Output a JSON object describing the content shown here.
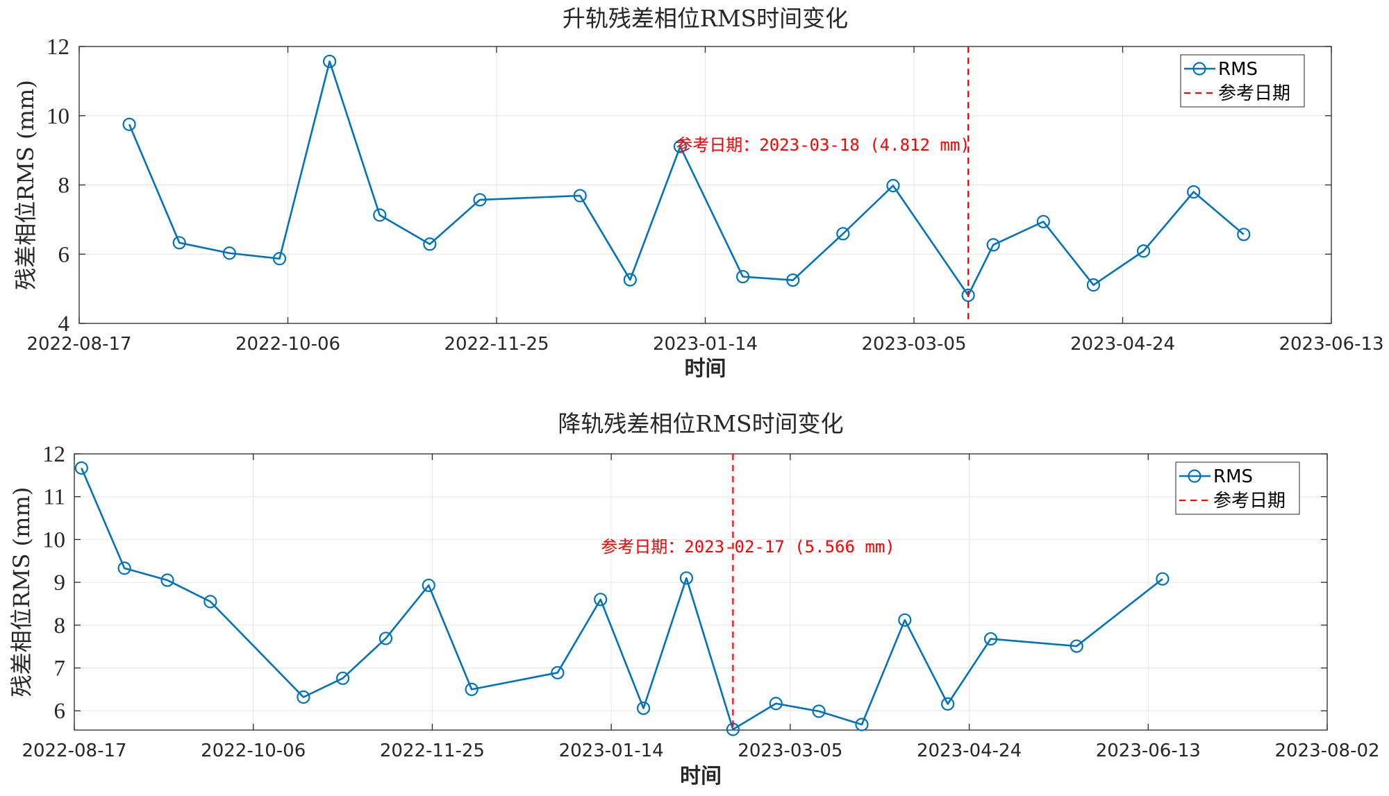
{
  "colors": {
    "series": "#0072bd",
    "reference": "#ff0000",
    "grid": "#e6e6e6",
    "axis": "#262626"
  },
  "chart_data": [
    {
      "type": "line",
      "title": "升轨残差相位RMS时间变化",
      "xlabel": "时间",
      "ylabel": "残差相位RMS (mm)",
      "xlim": [
        "2022-08-17",
        "2023-06-13"
      ],
      "ylim": [
        4,
        12
      ],
      "x_ticks": [
        "2022-08-17",
        "2022-10-06",
        "2022-11-25",
        "2023-01-14",
        "2023-03-05",
        "2023-04-24",
        "2023-06-13"
      ],
      "y_ticks": [
        4,
        6,
        8,
        10,
        12
      ],
      "grid": true,
      "legend_position": "top-right",
      "legend": {
        "series_label": "RMS",
        "reference_label": "参考日期"
      },
      "series": [
        {
          "name": "RMS",
          "marker": "circle",
          "points": [
            {
              "x": "2022-08-29",
              "y": 9.75
            },
            {
              "x": "2022-09-10",
              "y": 6.33
            },
            {
              "x": "2022-09-22",
              "y": 6.03
            },
            {
              "x": "2022-10-04",
              "y": 5.87
            },
            {
              "x": "2022-10-16",
              "y": 11.57
            },
            {
              "x": "2022-10-28",
              "y": 7.13
            },
            {
              "x": "2022-11-09",
              "y": 6.29
            },
            {
              "x": "2022-11-21",
              "y": 7.57
            },
            {
              "x": "2022-12-15",
              "y": 7.69
            },
            {
              "x": "2022-12-27",
              "y": 5.26
            },
            {
              "x": "2023-01-08",
              "y": 9.11
            },
            {
              "x": "2023-01-23",
              "y": 5.35
            },
            {
              "x": "2023-02-04",
              "y": 5.25
            },
            {
              "x": "2023-02-16",
              "y": 6.59
            },
            {
              "x": "2023-02-28",
              "y": 7.98
            },
            {
              "x": "2023-03-18",
              "y": 4.812
            },
            {
              "x": "2023-03-24",
              "y": 6.27
            },
            {
              "x": "2023-04-05",
              "y": 6.94
            },
            {
              "x": "2023-04-17",
              "y": 5.11
            },
            {
              "x": "2023-04-29",
              "y": 6.09
            },
            {
              "x": "2023-05-11",
              "y": 7.8
            },
            {
              "x": "2023-05-23",
              "y": 6.57
            }
          ]
        }
      ],
      "reference": {
        "x": "2023-03-18",
        "label": "参考日期：2023-03-18 (4.812 mm)"
      }
    },
    {
      "type": "line",
      "title": "降轨残差相位RMS时间变化",
      "xlabel": "时间",
      "ylabel": "残差相位RMS (mm)",
      "xlim": [
        "2022-08-17",
        "2023-08-02"
      ],
      "ylim": [
        5.55,
        12
      ],
      "x_ticks": [
        "2022-08-17",
        "2022-10-06",
        "2022-11-25",
        "2023-01-14",
        "2023-03-05",
        "2023-04-24",
        "2023-06-13",
        "2023-08-02"
      ],
      "y_ticks": [
        6,
        7,
        8,
        9,
        10,
        11,
        12
      ],
      "grid": true,
      "legend_position": "top-right",
      "legend": {
        "series_label": "RMS",
        "reference_label": "参考日期"
      },
      "series": [
        {
          "name": "RMS",
          "marker": "circle",
          "points": [
            {
              "x": "2022-08-19",
              "y": 11.67
            },
            {
              "x": "2022-08-31",
              "y": 9.33
            },
            {
              "x": "2022-09-12",
              "y": 9.05
            },
            {
              "x": "2022-09-24",
              "y": 8.55
            },
            {
              "x": "2022-10-20",
              "y": 6.32
            },
            {
              "x": "2022-10-31",
              "y": 6.76
            },
            {
              "x": "2022-11-12",
              "y": 7.69
            },
            {
              "x": "2022-11-24",
              "y": 8.93
            },
            {
              "x": "2022-12-06",
              "y": 6.5
            },
            {
              "x": "2022-12-30",
              "y": 6.89
            },
            {
              "x": "2023-01-11",
              "y": 8.6
            },
            {
              "x": "2023-01-23",
              "y": 6.06
            },
            {
              "x": "2023-02-04",
              "y": 9.1
            },
            {
              "x": "2023-02-17",
              "y": 5.566
            },
            {
              "x": "2023-03-01",
              "y": 6.17
            },
            {
              "x": "2023-03-13",
              "y": 5.99
            },
            {
              "x": "2023-03-25",
              "y": 5.68
            },
            {
              "x": "2023-04-06",
              "y": 8.12
            },
            {
              "x": "2023-04-18",
              "y": 6.16
            },
            {
              "x": "2023-04-30",
              "y": 7.68
            },
            {
              "x": "2023-05-24",
              "y": 7.51
            },
            {
              "x": "2023-06-17",
              "y": 9.08
            }
          ]
        }
      ],
      "reference": {
        "x": "2023-02-17",
        "label": "参考日期：2023-02-17 (5.566 mm)"
      }
    }
  ]
}
